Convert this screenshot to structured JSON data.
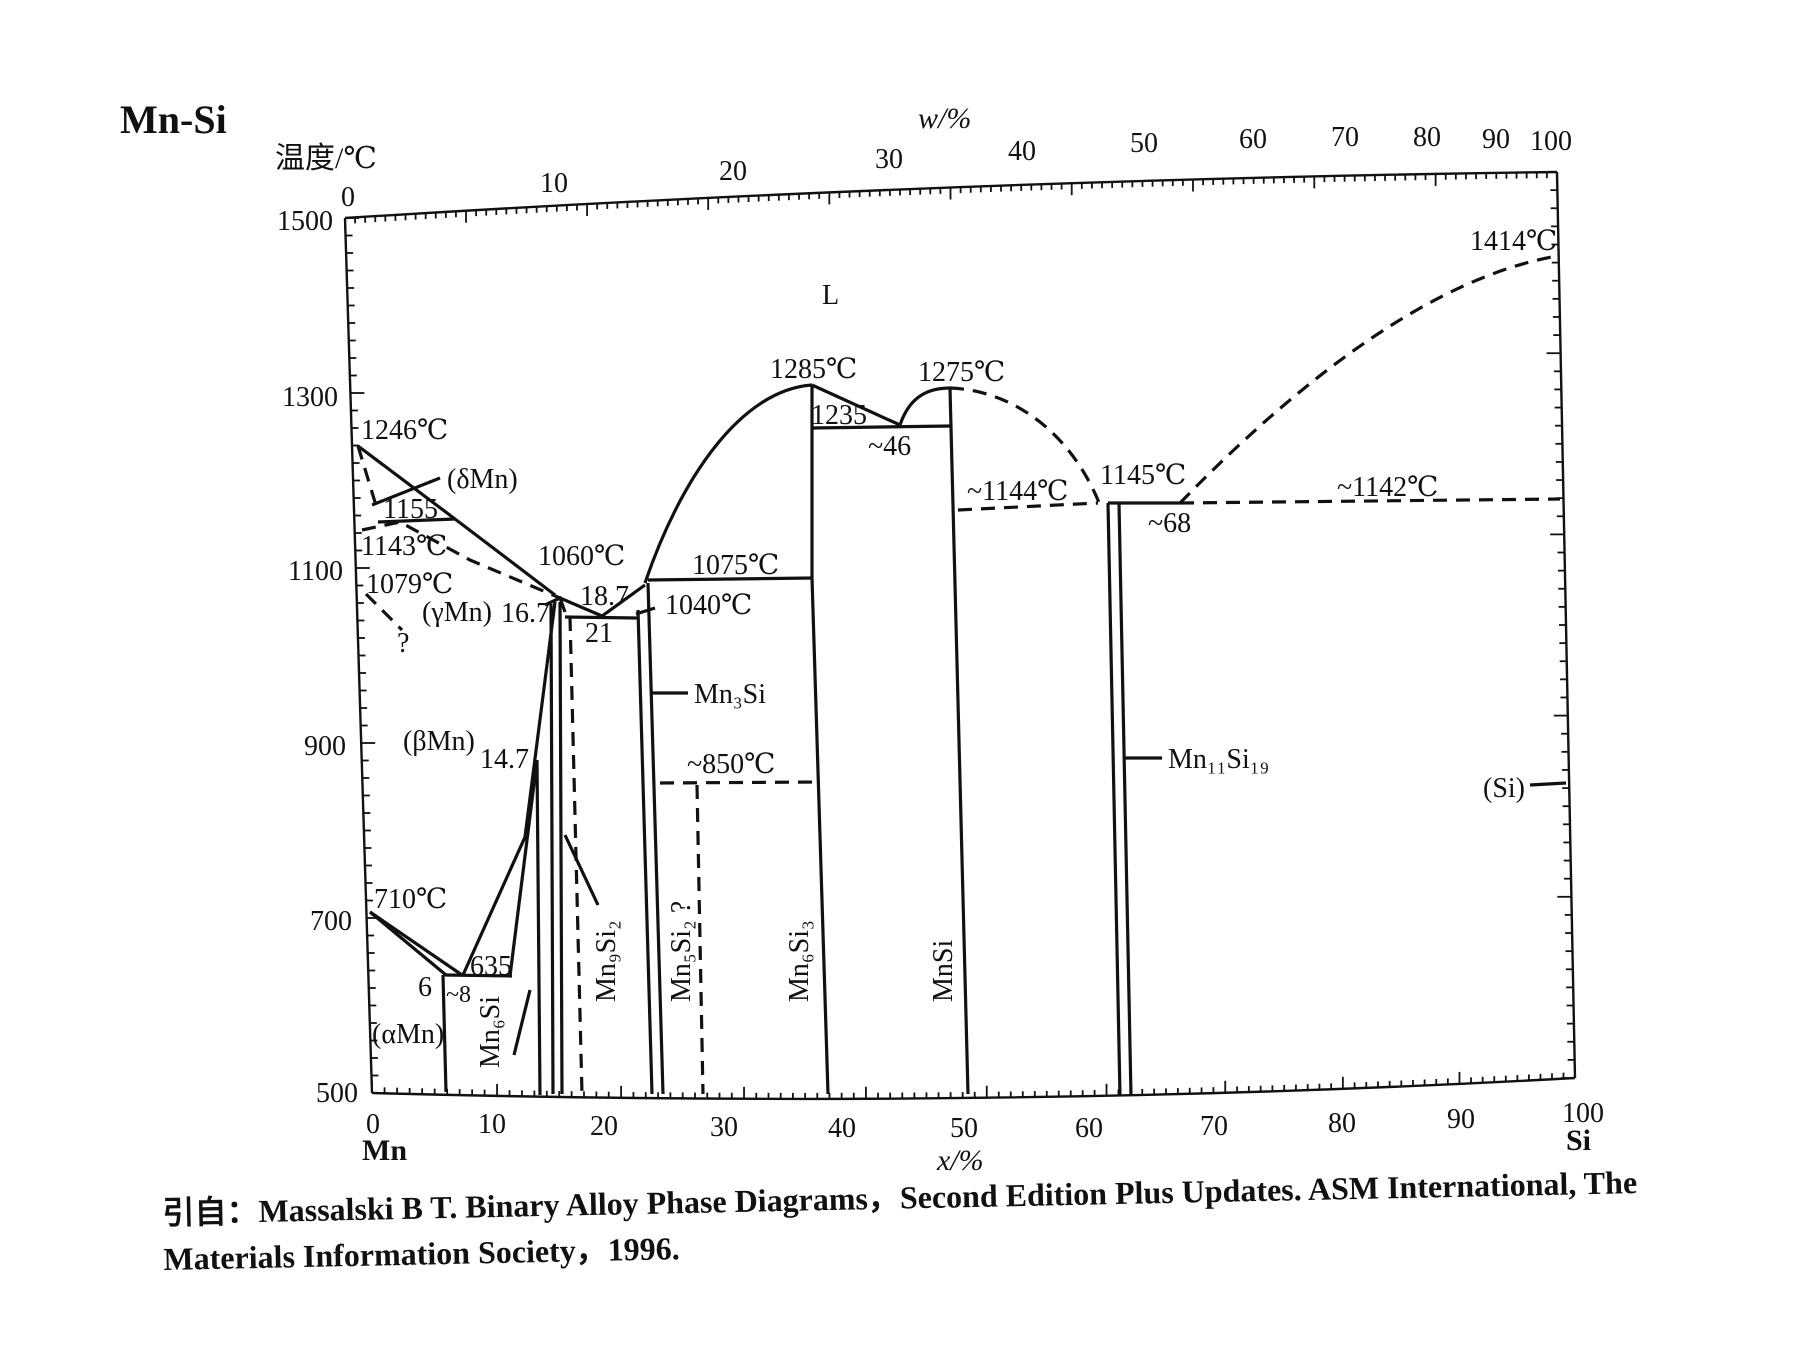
{
  "title": "Mn-Si",
  "y_axis_label": "温度/℃",
  "top_axis_label": "w/%",
  "bottom_axis_label": "x/%",
  "bottom_left_element": "Mn",
  "bottom_right_element": "Si",
  "y_ticks": [
    "1500",
    "1300",
    "1100",
    "900",
    "700",
    "500"
  ],
  "bottom_ticks": [
    "0",
    "10",
    "20",
    "30",
    "40",
    "50",
    "60",
    "70",
    "80",
    "90",
    "100"
  ],
  "top_ticks": [
    "0",
    "10",
    "20",
    "30",
    "40",
    "50",
    "60",
    "70",
    "80",
    "90",
    "100"
  ],
  "labels": {
    "L": "L",
    "t1246": "1246℃",
    "deltaMn": "(δMn)",
    "t1155": "1155",
    "t1143": "1143℃",
    "t1079": "1079℃",
    "q1": "?",
    "gammaMn": "(γMn)",
    "c16_7": "16.7",
    "t1060": "1060℃",
    "c18_7": "18.7",
    "c21": "21",
    "t1075": "1075℃",
    "t1040": "1040℃",
    "t1285": "1285℃",
    "t1235": "1235",
    "c46": "~46",
    "t1275": "1275℃",
    "t1144": "~1144℃",
    "t1145": "1145℃",
    "c68": "~68",
    "t1142": "~1142℃",
    "t1414": "1414℃",
    "mn3si": "Mn₃Si",
    "t850": "~850℃",
    "betaMn": "(βMn)",
    "c14_7": "14.7",
    "t710": "710℃",
    "t635": "635",
    "c6": "6",
    "c8": "~8",
    "alphaMn": "(αMn)",
    "mn6si": "Mn₆Si",
    "mn9si2": "Mn₉Si₂",
    "mn5si2": "Mn₅Si₂ ?",
    "mn6si3": "Mn₆Si₃",
    "mnsi": "MnSi",
    "mn11si19": "Mn₁₁Si₁₉",
    "si": "(Si)"
  },
  "caption": {
    "line1": "引自：Massalski B T.  Binary Alloy Phase Diagrams，Second Edition Plus Updates.  ASM International, The",
    "line2": "Materials Information Society，1996."
  }
}
